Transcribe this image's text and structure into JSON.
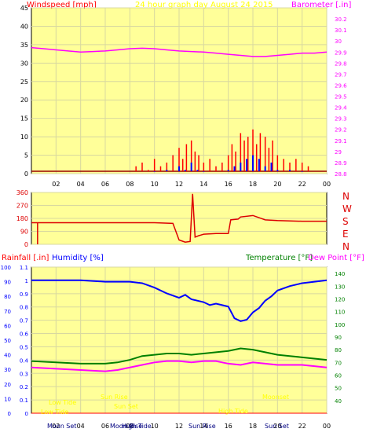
{
  "colors": {
    "plot_bg": "#ffff99",
    "grid": "#d8d8a0",
    "frame": "#000000",
    "windspeed": "#ff0000",
    "gust": "#0000ff",
    "barometer": "#ff00ff",
    "direction": "#dd0000",
    "rainfall": "#ff0000",
    "humidity": "#0000ff",
    "temperature": "#008000",
    "dew_point": "#ff00ff",
    "rain_scale": "#0000ff",
    "temp_scale": "#008000",
    "faded_label": "#ffff00"
  },
  "chart_data": [
    {
      "type": "line",
      "title": "24 hour graph day   August 24 2015",
      "x_ticks": [
        "02",
        "04",
        "06",
        "08",
        "10",
        "12",
        "14",
        "16",
        "18",
        "20",
        "22",
        "00"
      ],
      "xlim": [
        0,
        24
      ],
      "left_axis": {
        "label": "Windspeed [mph]",
        "ylim": [
          0,
          45
        ],
        "ticks": [
          "0",
          "5",
          "10",
          "15",
          "20",
          "25",
          "30",
          "35",
          "40",
          "45"
        ]
      },
      "right_axis": {
        "label": "Barometer [.in]",
        "ylim": [
          28.8,
          30.3
        ],
        "ticks": [
          "28.8",
          "28.9",
          "29",
          "29.1",
          "29.2",
          "29.3",
          "29.4",
          "29.5",
          "29.6",
          "29.7",
          "29.8",
          "29.9",
          "30",
          "30.1",
          "30.2"
        ]
      },
      "series": [
        {
          "key": "barometer",
          "axis": "right",
          "x": [
            0,
            1,
            2,
            3,
            4,
            5,
            6,
            7,
            8,
            9,
            10,
            11,
            12,
            13,
            14,
            15,
            16,
            17,
            18,
            19,
            20,
            21,
            22,
            23,
            24
          ],
          "y": [
            29.94,
            29.93,
            29.92,
            29.91,
            29.9,
            29.905,
            29.91,
            29.92,
            29.93,
            29.935,
            29.93,
            29.92,
            29.91,
            29.905,
            29.9,
            29.89,
            29.88,
            29.87,
            29.86,
            29.86,
            29.87,
            29.88,
            29.89,
            29.89,
            29.9
          ]
        },
        {
          "key": "windspeed",
          "axis": "left",
          "x": [
            8.5,
            9,
            9.5,
            10,
            10.5,
            11,
            11.5,
            12,
            12.3,
            12.6,
            13,
            13.3,
            13.6,
            14,
            14.5,
            15,
            15.5,
            16,
            16.3,
            16.6,
            17,
            17.3,
            17.6,
            18,
            18.3,
            18.6,
            19,
            19.3,
            19.6,
            20,
            20.5,
            21,
            21.5,
            22,
            22.5
          ],
          "y": [
            2,
            3,
            1,
            4,
            2,
            3,
            5,
            7,
            4,
            8,
            9,
            6,
            5,
            3,
            4,
            2,
            3,
            5,
            8,
            6,
            11,
            9,
            10,
            12,
            8,
            11,
            10,
            7,
            9,
            5,
            4,
            3,
            4,
            3,
            2
          ]
        },
        {
          "key": "gust",
          "axis": "left",
          "x": [
            10,
            11,
            12,
            12.5,
            13,
            13.5,
            14,
            16,
            16.5,
            17,
            17.5,
            18,
            18.5,
            19,
            19.5,
            20,
            21,
            22
          ],
          "y": [
            0.5,
            1,
            2,
            1,
            3,
            1,
            0.5,
            1,
            2,
            3,
            4,
            5,
            4,
            2,
            3,
            1,
            1,
            0.5
          ]
        }
      ]
    },
    {
      "type": "line",
      "left_axis": {
        "ylim": [
          0,
          360
        ],
        "ticks": [
          "0",
          "90",
          "180",
          "270",
          "360"
        ]
      },
      "right_labels": [
        "N",
        "W",
        "S",
        "E",
        "N"
      ],
      "xlim": [
        0,
        24
      ],
      "series": [
        {
          "key": "direction",
          "x": [
            0,
            0.5,
            1,
            2,
            4,
            6,
            8,
            10,
            11.5,
            12,
            12.5,
            12.9,
            13.1,
            13.3,
            13.6,
            14,
            15,
            16,
            16.2,
            16.8,
            17,
            18,
            19,
            20,
            22,
            24
          ],
          "y": [
            150,
            150,
            150,
            150,
            150,
            150,
            150,
            150,
            145,
            30,
            15,
            20,
            350,
            50,
            60,
            70,
            75,
            75,
            170,
            175,
            190,
            200,
            170,
            165,
            160,
            160
          ]
        }
      ]
    },
    {
      "type": "line",
      "labels": {
        "rainfall": "Rainfall [.in]",
        "humidity": "Humidity [%]",
        "temperature": "Temperature [°F]",
        "dew_point": "Dew Point [°F]"
      },
      "left_axis": {
        "ylim": [
          0,
          1.1
        ],
        "ticks": [
          "0",
          "0.1",
          "0.2",
          "0.3",
          "0.4",
          "0.5",
          "0.6",
          "0.7",
          "0.8",
          "0.9",
          "1",
          "1.1"
        ]
      },
      "far_left_axis": {
        "ylim": [
          0,
          100
        ],
        "ticks": [
          "0",
          "10",
          "20",
          "30",
          "40",
          "50",
          "60",
          "70",
          "80",
          "90",
          "100"
        ]
      },
      "right_axis": {
        "ylim": [
          30,
          145
        ],
        "ticks": [
          "40",
          "50",
          "60",
          "70",
          "80",
          "90",
          "100",
          "110",
          "120",
          "130",
          "140"
        ]
      },
      "x_ticks": [
        "02",
        "04",
        "06",
        "08",
        "10",
        "12",
        "14",
        "16",
        "18",
        "20",
        "22",
        "00"
      ],
      "bottom_labels": [
        "Moon Set",
        "Moon Rise",
        "High Tide",
        "Sun Rise",
        "Sun Set"
      ],
      "faded_labels": [
        "Low Tide",
        "Low Tide",
        "Sun Rise",
        "Sun Set",
        "High Tide",
        "Moonset"
      ],
      "xlim": [
        0,
        24
      ],
      "series": [
        {
          "key": "humidity",
          "axis": "far_left",
          "x": [
            0,
            2,
            4,
            6,
            8,
            9,
            10,
            11,
            12,
            12.5,
            13,
            14,
            14.5,
            15,
            15.5,
            16,
            16.5,
            17,
            17.5,
            18,
            18.5,
            19,
            19.5,
            20,
            21,
            22,
            23,
            24
          ],
          "y": [
            91,
            91,
            91,
            90,
            90,
            89,
            86,
            82,
            79,
            81,
            78,
            76,
            74,
            75,
            74,
            73,
            65,
            63,
            64,
            69,
            72,
            77,
            80,
            84,
            87,
            89,
            90,
            91
          ]
        },
        {
          "key": "temperature",
          "axis": "right",
          "x": [
            0,
            2,
            4,
            6,
            7,
            8,
            9,
            10,
            11,
            12,
            13,
            14,
            15,
            16,
            17,
            18,
            19,
            20,
            21,
            22,
            23,
            24
          ],
          "y": [
            71,
            70,
            69,
            69,
            70,
            72,
            75,
            76,
            77,
            77,
            76,
            77,
            78,
            79,
            81,
            80,
            78,
            76,
            75,
            74,
            73,
            72
          ]
        },
        {
          "key": "dew_point",
          "axis": "right",
          "x": [
            0,
            2,
            4,
            6,
            7,
            8,
            9,
            10,
            11,
            12,
            13,
            14,
            15,
            16,
            17,
            18,
            19,
            20,
            21,
            22,
            23,
            24
          ],
          "y": [
            66,
            65,
            64,
            63,
            64,
            66,
            68,
            70,
            71,
            71,
            70,
            71,
            71,
            69,
            68,
            70,
            69,
            68,
            68,
            68,
            67,
            66
          ]
        },
        {
          "key": "rainfall",
          "axis": "left",
          "x": [
            0,
            24
          ],
          "y": [
            0,
            0
          ]
        }
      ]
    }
  ]
}
